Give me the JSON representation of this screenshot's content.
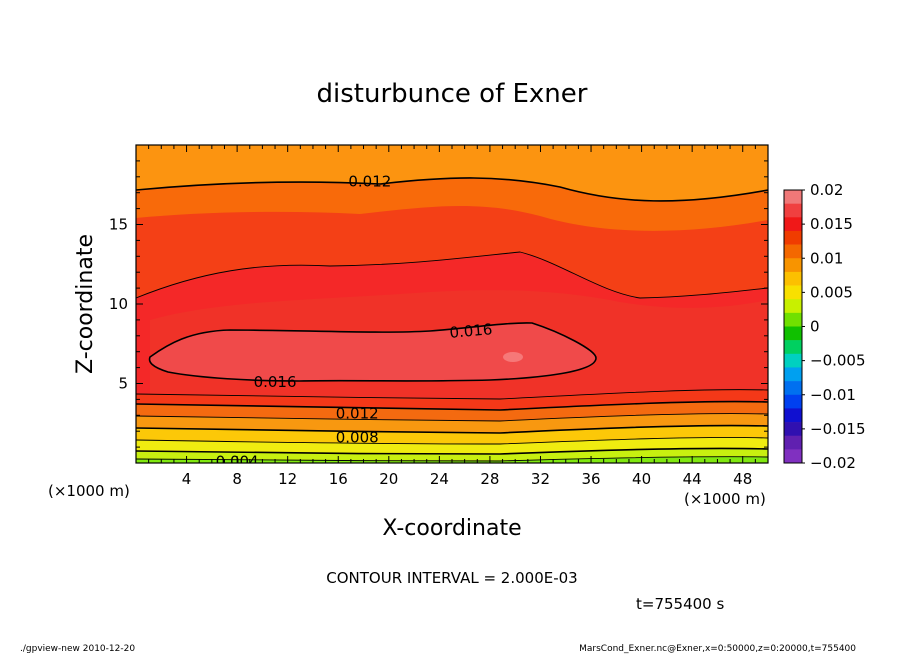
{
  "chart_data": {
    "type": "heatmap",
    "title": "disturbunce of Exner",
    "xlabel": "X-coordinate",
    "ylabel": "Z-coordinate",
    "x_unit_left": "(×1000 m)",
    "x_unit_right": "(×1000 m)",
    "xlim": [
      0,
      50
    ],
    "ylim": [
      0,
      20
    ],
    "x_ticks": [
      4,
      8,
      12,
      16,
      20,
      24,
      28,
      32,
      36,
      40,
      44,
      48
    ],
    "y_ticks": [
      5,
      10,
      15
    ],
    "x_tick_labels": [
      "4",
      "8",
      "12",
      "16",
      "20",
      "24",
      "28",
      "32",
      "36",
      "40",
      "44",
      "48"
    ],
    "y_tick_labels": [
      "5",
      "10",
      "15"
    ],
    "contour_interval": 0.002,
    "contour_interval_text": "CONTOUR INTERVAL = 2.000E-03",
    "time_text": "t=755400 s",
    "contour_labels": [
      {
        "text": "0.012",
        "level": 0.012,
        "x": 18.5,
        "z": 17.7
      },
      {
        "text": "0.016",
        "level": 0.016,
        "x": 26.5,
        "z": 8.3
      },
      {
        "text": "0.016",
        "level": 0.016,
        "x": 11,
        "z": 5.1
      },
      {
        "text": "0.012",
        "level": 0.012,
        "x": 17.5,
        "z": 3.1
      },
      {
        "text": "0.008",
        "level": 0.008,
        "x": 17.5,
        "z": 1.6
      },
      {
        "text": "0.004",
        "level": 0.004,
        "x": 8,
        "z": 0.1
      }
    ],
    "colorbar": {
      "min": -0.02,
      "max": 0.02,
      "tick_labels": [
        "0.02",
        "0.015",
        "0.01",
        "0.005",
        "0",
        "−0.005",
        "−0.01",
        "−0.015",
        "−0.02"
      ],
      "colors": [
        "#f07878",
        "#f04040",
        "#f01818",
        "#f03c00",
        "#f46800",
        "#f89400",
        "#fcc000",
        "#f8e000",
        "#c8f000",
        "#70e000",
        "#10c000",
        "#00d060",
        "#00d0c0",
        "#00a0f0",
        "#0070f0",
        "#0040f0",
        "#1010d0",
        "#3010b0",
        "#6020b0",
        "#8030c0"
      ]
    }
  },
  "footer": {
    "left": "./gpview-new   2010-12-20",
    "right": "MarsCond_Exner.nc@Exner,x=0:50000,z=0:20000,t=755400"
  }
}
